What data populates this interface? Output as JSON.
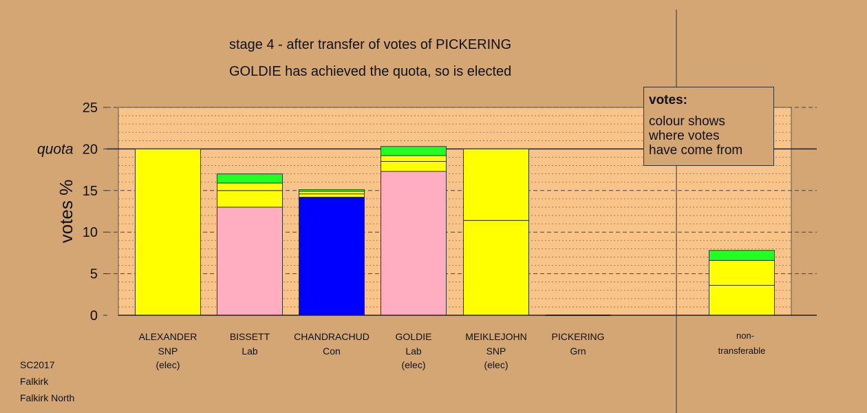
{
  "title_line1": "stage 4 - after transfer of votes of PICKERING",
  "title_line2": "GOLDIE has achieved the quota, so is elected",
  "legend": {
    "title": "votes:",
    "lines": [
      "colour shows",
      "where votes",
      "have come from"
    ]
  },
  "footer": [
    "SC2017",
    "Falkirk",
    "Falkirk North"
  ],
  "colors": {
    "background": "#d3a673",
    "plot_background": "#f8c48a",
    "SNP": "#ffff00",
    "Lab": "#ffaec2",
    "Con": "#0000ff",
    "Grn": "#22ff22"
  },
  "chart_data": {
    "type": "bar",
    "stacked": true,
    "ylabel": "votes %",
    "ylim": [
      0,
      25
    ],
    "yticks": [
      0,
      5,
      10,
      15,
      20,
      25
    ],
    "quota": 20,
    "quota_label": "quota",
    "grid": true,
    "candidates": [
      {
        "name": "ALEXANDER",
        "party": "SNP",
        "status": "(elec)",
        "segments": [
          {
            "from": "SNP",
            "value": 20.0
          }
        ]
      },
      {
        "name": "BISSETT",
        "party": "Lab",
        "status": "",
        "segments": [
          {
            "from": "Lab",
            "value": 13.0
          },
          {
            "from": "SNP",
            "value": 2.0
          },
          {
            "from": "SNP",
            "value": 0.9
          },
          {
            "from": "Grn",
            "value": 1.1
          }
        ]
      },
      {
        "name": "CHANDRACHUD",
        "party": "Con",
        "status": "",
        "segments": [
          {
            "from": "Con",
            "value": 14.2
          },
          {
            "from": "SNP",
            "value": 0.4
          },
          {
            "from": "SNP",
            "value": 0.3
          },
          {
            "from": "Grn",
            "value": 0.2
          }
        ]
      },
      {
        "name": "GOLDIE",
        "party": "Lab",
        "status": "(elec)",
        "segments": [
          {
            "from": "Lab",
            "value": 17.3
          },
          {
            "from": "SNP",
            "value": 1.2
          },
          {
            "from": "SNP",
            "value": 0.7
          },
          {
            "from": "Grn",
            "value": 1.1
          }
        ]
      },
      {
        "name": "MEIKLEJOHN",
        "party": "SNP",
        "status": "(elec)",
        "segments": [
          {
            "from": "SNP",
            "value": 11.4
          },
          {
            "from": "SNP",
            "value": 8.6
          }
        ]
      },
      {
        "name": "PICKERING",
        "party": "Grn",
        "status": "",
        "segments": []
      }
    ],
    "nontransferable": {
      "label_lines": [
        "non-",
        "transferable"
      ],
      "segments": [
        {
          "from": "SNP",
          "value": 3.6
        },
        {
          "from": "SNP",
          "value": 3.0
        },
        {
          "from": "Grn",
          "value": 1.2
        }
      ]
    }
  }
}
